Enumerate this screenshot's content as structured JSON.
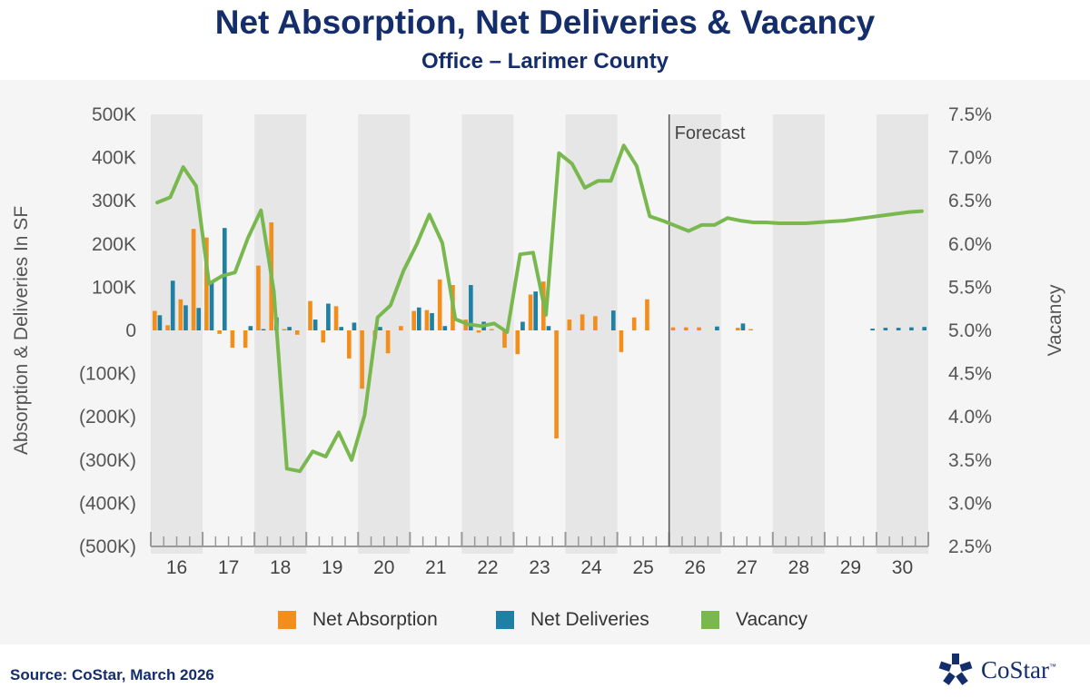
{
  "title": "Net Absorption, Net Deliveries & Vacancy",
  "subtitle": "Office – Larimer County",
  "source": "Source: CoStar, March 2026",
  "logo": {
    "text": "CoStar",
    "tm": "™"
  },
  "colors": {
    "net_absorption": "#f28e1c",
    "net_deliveries": "#1f80a3",
    "vacancy": "#79b84e",
    "title": "#142d6b",
    "shade": "#e6e6e6",
    "background": "#f5f5f5"
  },
  "chart_data": {
    "type": "bar",
    "title": "Net Absorption, Net Deliveries & Vacancy",
    "subtitle": "Office – Larimer County",
    "ylabel": "Absorption & Deliveries In SF",
    "y2label": "Vacancy",
    "ylim": [
      -500000,
      500000
    ],
    "y2lim": [
      2.5,
      7.5
    ],
    "y_ticks": [
      "500K",
      "400K",
      "300K",
      "200K",
      "100K",
      "0",
      "(100K)",
      "(200K)",
      "(300K)",
      "(400K)",
      "(500K)"
    ],
    "y2_ticks": [
      "7.5%",
      "7.0%",
      "6.5%",
      "6.0%",
      "5.5%",
      "5.0%",
      "4.5%",
      "4.0%",
      "3.5%",
      "3.0%",
      "2.5%"
    ],
    "year_labels": [
      "16",
      "17",
      "18",
      "19",
      "20",
      "21",
      "22",
      "23",
      "24",
      "25",
      "26",
      "27",
      "28",
      "29",
      "30"
    ],
    "quarters_per_year": 4,
    "forecast_label": "Forecast",
    "forecast_start_year": "26",
    "alternating_year_shading": true,
    "legend": [
      "Net Absorption",
      "Net Deliveries",
      "Vacancy"
    ],
    "series": [
      {
        "name": "Net Absorption",
        "type": "bar",
        "values": [
          45000,
          12000,
          72000,
          235000,
          215000,
          -8000,
          -40000,
          -40000,
          150000,
          250000,
          3000,
          -10000,
          68000,
          -28000,
          56000,
          -65000,
          -135000,
          -20000,
          -53000,
          10000,
          45000,
          47000,
          118000,
          105000,
          25000,
          -5000,
          3000,
          -40000,
          -55000,
          83000,
          113000,
          -250000,
          25000,
          37000,
          33000,
          0,
          -50000,
          30000,
          72000,
          0,
          7000,
          7000,
          7000,
          0,
          0,
          6000,
          3000,
          0,
          0,
          0,
          0,
          0,
          0,
          0,
          0,
          0,
          0,
          0,
          0,
          0
        ]
      },
      {
        "name": "Net Deliveries",
        "type": "bar",
        "values": [
          35000,
          115000,
          58000,
          52000,
          113000,
          237000,
          0,
          10000,
          3000,
          30000,
          8000,
          0,
          25000,
          62000,
          8000,
          18000,
          0,
          8000,
          0,
          0,
          53000,
          40000,
          10000,
          0,
          105000,
          20000,
          0,
          0,
          20000,
          90000,
          10000,
          0,
          0,
          0,
          0,
          46000,
          0,
          0,
          0,
          0,
          0,
          0,
          0,
          9000,
          0,
          16000,
          0,
          0,
          0,
          0,
          0,
          0,
          0,
          0,
          0,
          4000,
          6000,
          6000,
          7000,
          8000
        ]
      },
      {
        "name": "Vacancy",
        "type": "line",
        "values": [
          6.48,
          6.54,
          6.89,
          6.67,
          5.54,
          5.63,
          5.67,
          6.07,
          6.39,
          5.45,
          3.4,
          3.37,
          3.6,
          3.54,
          3.82,
          3.5,
          4.02,
          5.15,
          5.29,
          5.69,
          5.99,
          6.34,
          6.01,
          5.13,
          5.07,
          5.05,
          5.08,
          4.98,
          5.88,
          5.9,
          5.18,
          7.05,
          6.93,
          6.65,
          6.73,
          6.73,
          7.14,
          6.9,
          6.32,
          6.27,
          6.21,
          6.15,
          6.22,
          6.22,
          6.3,
          6.27,
          6.25,
          6.25,
          6.24,
          6.24,
          6.24,
          6.25,
          6.26,
          6.27,
          6.29,
          6.31,
          6.33,
          6.35,
          6.37,
          6.38
        ]
      }
    ]
  }
}
